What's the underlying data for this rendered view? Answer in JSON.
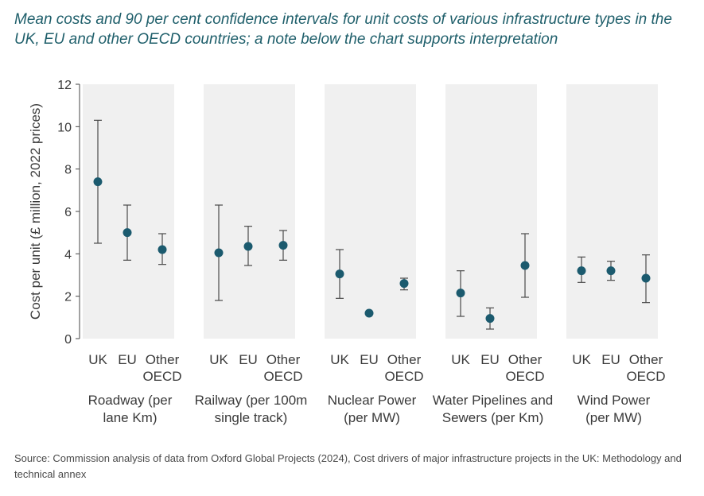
{
  "title": "Mean costs and 90 per cent confidence intervals for unit costs of various infrastructure types in the UK, EU and other OECD countries; a note below the chart supports interpretation",
  "source": "Source: Commission analysis of data from Oxford Global Projects (2024), Cost drivers of major infrastructure projects in the UK: Methodology and technical annex",
  "colors": {
    "point": "#1b5a6e",
    "whisker": "#4a4a4a",
    "panel": "#f0f0f0",
    "title": "#1f5f6b",
    "axis": "#444444"
  },
  "chart_data": {
    "type": "scatter",
    "title": "Mean costs and 90 per cent confidence intervals for unit costs of various infrastructure types in the UK, EU and other OECD countries; a note below the chart supports interpretation",
    "ylabel": "Cost per unit (£ million, 2022 prices)",
    "ylim": [
      0,
      12
    ],
    "yticks": [
      0,
      2,
      4,
      6,
      8,
      10,
      12
    ],
    "grid": false,
    "categories": [
      [
        "UK"
      ],
      [
        "EU"
      ],
      [
        "Other",
        "OECD"
      ]
    ],
    "groups": [
      {
        "name": [
          "Roadway (per",
          "lane Km)"
        ],
        "means": [
          7.4,
          5.0,
          4.2
        ],
        "lower": [
          4.5,
          3.7,
          3.5
        ],
        "upper": [
          10.3,
          6.3,
          4.95
        ]
      },
      {
        "name": [
          "Railway (per 100m",
          "single track)"
        ],
        "means": [
          4.05,
          4.35,
          4.4
        ],
        "lower": [
          1.8,
          3.45,
          3.7
        ],
        "upper": [
          6.3,
          5.3,
          5.1
        ]
      },
      {
        "name": [
          "Nuclear Power",
          "(per MW)"
        ],
        "means": [
          3.05,
          1.2,
          2.6
        ],
        "lower": [
          1.9,
          1.2,
          2.3
        ],
        "upper": [
          4.2,
          1.2,
          2.85
        ]
      },
      {
        "name": [
          "Water Pipelines and",
          "Sewers (per Km)"
        ],
        "means": [
          2.15,
          0.95,
          3.45
        ],
        "lower": [
          1.05,
          0.45,
          1.95
        ],
        "upper": [
          3.2,
          1.45,
          4.95
        ]
      },
      {
        "name": [
          "Wind Power",
          "(per MW)"
        ],
        "means": [
          3.2,
          3.2,
          2.85
        ],
        "lower": [
          2.65,
          2.75,
          1.7
        ],
        "upper": [
          3.85,
          3.65,
          3.95
        ]
      }
    ]
  }
}
